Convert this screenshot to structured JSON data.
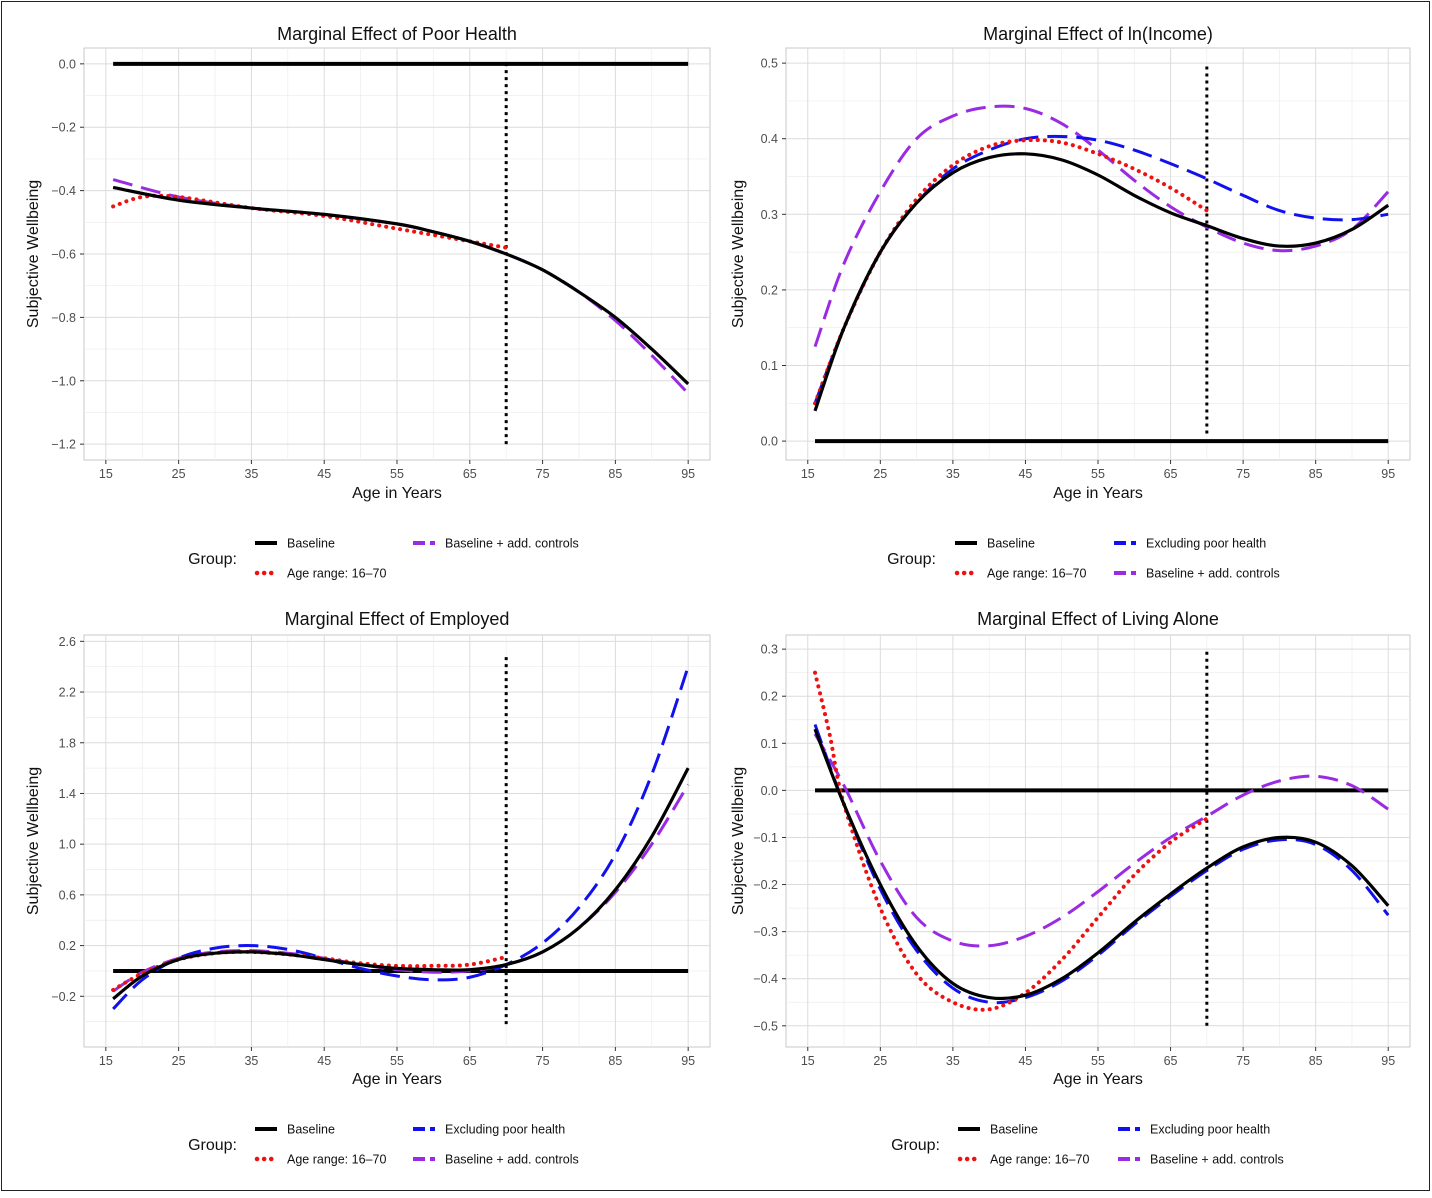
{
  "legend": {
    "group_label": "Group:",
    "entries": {
      "baseline": "Baseline",
      "age_range": "Age range: 16–70",
      "excluding": "Excluding poor health",
      "add_controls": "Baseline + add. controls"
    }
  },
  "series_colors": {
    "baseline": "#000000",
    "age_range": "#ee1111",
    "excluding": "#1111ee",
    "add_controls": "#9a2be2"
  },
  "chart_data": [
    {
      "type": "line",
      "title": "Marginal Effect of Poor Health",
      "xlabel": "Age in Years",
      "ylabel": "Subjective Wellbeing",
      "xlim": [
        12,
        98
      ],
      "ylim": [
        -1.25,
        0.05
      ],
      "xticks": [
        15,
        25,
        35,
        45,
        55,
        65,
        75,
        85,
        95
      ],
      "yticks": [
        0.0,
        -0.2,
        -0.4,
        -0.6,
        -0.8,
        -1.0,
        -1.2
      ],
      "ytick_labels": [
        "0.0",
        "−0.2",
        "−0.4",
        "−0.6",
        "−0.8",
        "−1.0",
        "−1.2"
      ],
      "zero_line": {
        "x": [
          16,
          95
        ],
        "y": 0
      },
      "vline": {
        "x": 70,
        "y": [
          -1.2,
          0.0
        ]
      },
      "legend_layout": "two-top-one-bottom",
      "grid": true,
      "series": [
        {
          "name": "Baseline",
          "key": "baseline",
          "x": [
            16,
            25,
            35,
            45,
            55,
            60,
            65,
            70,
            75,
            80,
            85,
            90,
            95
          ],
          "y": [
            -0.39,
            -0.43,
            -0.455,
            -0.475,
            -0.505,
            -0.53,
            -0.56,
            -0.6,
            -0.65,
            -0.72,
            -0.8,
            -0.9,
            -1.01
          ]
        },
        {
          "name": "Age range: 16–70",
          "key": "age_range",
          "x": [
            16,
            20,
            25,
            35,
            45,
            55,
            65,
            70
          ],
          "y": [
            -0.45,
            -0.42,
            -0.42,
            -0.455,
            -0.48,
            -0.52,
            -0.56,
            -0.58
          ]
        },
        {
          "name": "Baseline + add. controls",
          "key": "add_controls",
          "x": [
            16,
            25,
            35,
            45,
            55,
            60,
            65,
            70,
            75,
            80,
            85,
            90,
            95
          ],
          "y": [
            -0.365,
            -0.42,
            -0.455,
            -0.475,
            -0.505,
            -0.53,
            -0.56,
            -0.6,
            -0.65,
            -0.72,
            -0.81,
            -0.92,
            -1.04
          ]
        }
      ]
    },
    {
      "type": "line",
      "title": "Marginal Effect of ln(Income)",
      "xlabel": "Age in Years",
      "ylabel": "Subjective Wellbeing",
      "xlim": [
        12,
        98
      ],
      "ylim": [
        -0.025,
        0.52
      ],
      "xticks": [
        15,
        25,
        35,
        45,
        55,
        65,
        75,
        85,
        95
      ],
      "yticks": [
        0.0,
        0.1,
        0.2,
        0.3,
        0.4,
        0.5
      ],
      "ytick_labels": [
        "0.0",
        "0.1",
        "0.2",
        "0.3",
        "0.4",
        "0.5"
      ],
      "zero_line": {
        "x": [
          16,
          95
        ],
        "y": 0
      },
      "vline": {
        "x": 70,
        "y": [
          0.01,
          0.5
        ]
      },
      "legend_layout": "two-by-two",
      "grid": true,
      "series": [
        {
          "name": "Baseline",
          "key": "baseline",
          "x": [
            16,
            20,
            25,
            30,
            35,
            40,
            45,
            50,
            55,
            60,
            65,
            70,
            75,
            80,
            85,
            90,
            95
          ],
          "y": [
            0.04,
            0.15,
            0.25,
            0.315,
            0.355,
            0.375,
            0.38,
            0.372,
            0.352,
            0.325,
            0.302,
            0.285,
            0.268,
            0.258,
            0.262,
            0.28,
            0.312
          ]
        },
        {
          "name": "Age range: 16–70",
          "key": "age_range",
          "x": [
            16,
            20,
            25,
            30,
            35,
            40,
            45,
            50,
            55,
            60,
            65,
            70
          ],
          "y": [
            0.05,
            0.15,
            0.25,
            0.32,
            0.365,
            0.39,
            0.398,
            0.395,
            0.38,
            0.36,
            0.335,
            0.305
          ]
        },
        {
          "name": "Excluding poor health",
          "key": "excluding",
          "x": [
            16,
            20,
            25,
            30,
            35,
            40,
            45,
            50,
            55,
            60,
            65,
            70,
            75,
            80,
            85,
            90,
            95
          ],
          "y": [
            0.05,
            0.15,
            0.25,
            0.315,
            0.36,
            0.385,
            0.4,
            0.403,
            0.398,
            0.385,
            0.367,
            0.347,
            0.325,
            0.305,
            0.295,
            0.293,
            0.3
          ]
        },
        {
          "name": "Baseline + add. controls",
          "key": "add_controls",
          "x": [
            16,
            20,
            25,
            30,
            35,
            40,
            45,
            50,
            55,
            60,
            65,
            70,
            75,
            80,
            85,
            90,
            95
          ],
          "y": [
            0.125,
            0.235,
            0.33,
            0.4,
            0.43,
            0.442,
            0.44,
            0.42,
            0.385,
            0.345,
            0.31,
            0.283,
            0.262,
            0.252,
            0.258,
            0.28,
            0.33
          ]
        }
      ]
    },
    {
      "type": "line",
      "title": "Marginal Effect of Employed",
      "xlabel": "Age in Years",
      "ylabel": "Subjective Wellbeing",
      "xlim": [
        12,
        98
      ],
      "ylim": [
        -0.6,
        2.65
      ],
      "xticks": [
        15,
        25,
        35,
        45,
        55,
        65,
        75,
        85,
        95
      ],
      "yticks": [
        2.6,
        2.2,
        1.8,
        1.4,
        1.0,
        0.6,
        0.2,
        -0.2
      ],
      "ytick_labels": [
        "2.6",
        "2.2",
        "1.8",
        "1.4",
        "1.0",
        "0.6",
        "0.2",
        "−0.2"
      ],
      "zero_line": {
        "x": [
          16,
          95
        ],
        "y": 0
      },
      "vline": {
        "x": 70,
        "y": [
          -0.42,
          2.5
        ]
      },
      "legend_layout": "two-by-two",
      "grid": true,
      "series": [
        {
          "name": "Baseline",
          "key": "baseline",
          "x": [
            16,
            20,
            25,
            30,
            35,
            40,
            45,
            50,
            55,
            60,
            65,
            70,
            75,
            80,
            85,
            90,
            95
          ],
          "y": [
            -0.22,
            -0.04,
            0.09,
            0.14,
            0.15,
            0.13,
            0.09,
            0.05,
            0.02,
            0.01,
            0.01,
            0.05,
            0.15,
            0.34,
            0.64,
            1.06,
            1.6
          ]
        },
        {
          "name": "Age range: 16–70",
          "key": "age_range",
          "x": [
            16,
            20,
            25,
            30,
            35,
            40,
            45,
            50,
            55,
            60,
            65,
            70
          ],
          "y": [
            -0.15,
            -0.02,
            0.09,
            0.14,
            0.15,
            0.13,
            0.1,
            0.06,
            0.04,
            0.04,
            0.05,
            0.11
          ]
        },
        {
          "name": "Excluding poor health",
          "key": "excluding",
          "x": [
            16,
            20,
            25,
            30,
            35,
            40,
            45,
            50,
            55,
            60,
            65,
            70,
            75,
            80,
            85,
            90,
            95
          ],
          "y": [
            -0.3,
            -0.07,
            0.1,
            0.18,
            0.2,
            0.17,
            0.1,
            0.02,
            -0.04,
            -0.07,
            -0.05,
            0.05,
            0.22,
            0.5,
            0.92,
            1.55,
            2.4
          ]
        },
        {
          "name": "Baseline + add. controls",
          "key": "add_controls",
          "x": [
            16,
            20,
            25,
            30,
            35,
            40,
            45,
            50,
            55,
            60,
            65,
            70,
            75,
            80,
            85,
            90,
            95
          ],
          "y": [
            -0.16,
            -0.01,
            0.1,
            0.15,
            0.16,
            0.14,
            0.1,
            0.05,
            0.01,
            -0.01,
            0.0,
            0.05,
            0.15,
            0.34,
            0.62,
            1.0,
            1.47
          ]
        }
      ]
    },
    {
      "type": "line",
      "title": "Marginal Effect of Living Alone",
      "xlabel": "Age in Years",
      "ylabel": "Subjective Wellbeing",
      "xlim": [
        12,
        98
      ],
      "ylim": [
        -0.545,
        0.33
      ],
      "xticks": [
        15,
        25,
        35,
        45,
        55,
        65,
        75,
        85,
        95
      ],
      "yticks": [
        0.3,
        0.2,
        0.1,
        0.0,
        -0.1,
        -0.2,
        -0.3,
        -0.4,
        -0.5
      ],
      "ytick_labels": [
        "0.3",
        "0.2",
        "0.1",
        "0.0",
        "−0.1",
        "−0.2",
        "−0.3",
        "−0.4",
        "−0.5"
      ],
      "zero_line": {
        "x": [
          16,
          95
        ],
        "y": 0
      },
      "vline": {
        "x": 70,
        "y": [
          -0.5,
          0.3
        ]
      },
      "legend_layout": "two-by-two",
      "grid": true,
      "series": [
        {
          "name": "Baseline",
          "key": "baseline",
          "x": [
            16,
            20,
            25,
            30,
            35,
            40,
            45,
            50,
            55,
            60,
            65,
            70,
            75,
            80,
            85,
            90,
            95
          ],
          "y": [
            0.13,
            -0.03,
            -0.2,
            -0.33,
            -0.41,
            -0.44,
            -0.435,
            -0.4,
            -0.345,
            -0.28,
            -0.22,
            -0.165,
            -0.12,
            -0.1,
            -0.11,
            -0.16,
            -0.245
          ]
        },
        {
          "name": "Age range: 16–70",
          "key": "age_range",
          "x": [
            16,
            18,
            20,
            25,
            30,
            35,
            40,
            45,
            50,
            55,
            60,
            65,
            70
          ],
          "y": [
            0.25,
            0.12,
            -0.03,
            -0.25,
            -0.39,
            -0.45,
            -0.465,
            -0.43,
            -0.36,
            -0.27,
            -0.18,
            -0.11,
            -0.06
          ]
        },
        {
          "name": "Excluding poor health",
          "key": "excluding",
          "x": [
            16,
            20,
            25,
            30,
            35,
            40,
            45,
            50,
            55,
            60,
            65,
            70,
            75,
            80,
            85,
            90,
            95
          ],
          "y": [
            0.14,
            -0.03,
            -0.21,
            -0.34,
            -0.42,
            -0.45,
            -0.44,
            -0.405,
            -0.35,
            -0.285,
            -0.225,
            -0.17,
            -0.125,
            -0.105,
            -0.115,
            -0.17,
            -0.265
          ]
        },
        {
          "name": "Baseline + add. controls",
          "key": "add_controls",
          "x": [
            16,
            20,
            25,
            30,
            35,
            40,
            45,
            50,
            55,
            60,
            65,
            70,
            75,
            80,
            85,
            90,
            95
          ],
          "y": [
            0.12,
            0.01,
            -0.15,
            -0.27,
            -0.32,
            -0.33,
            -0.31,
            -0.27,
            -0.215,
            -0.155,
            -0.1,
            -0.055,
            -0.01,
            0.02,
            0.03,
            0.01,
            -0.04
          ]
        }
      ]
    }
  ]
}
